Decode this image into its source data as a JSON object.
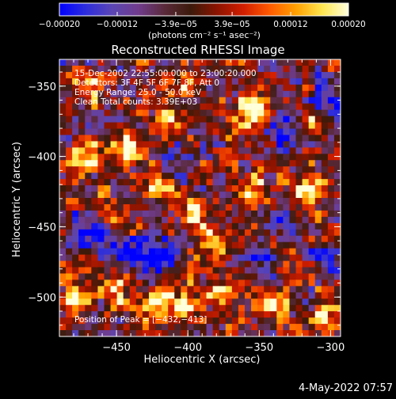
{
  "chart_data": {
    "type": "heatmap",
    "title": "Reconstructed RHESSI Image",
    "xlabel": "Heliocentric X (arcsec)",
    "ylabel": "Heliocentric Y (arcsec)",
    "xlim": [
      -490,
      -293
    ],
    "ylim": [
      -528,
      -331
    ],
    "x_ticks": [
      -450,
      -400,
      -350,
      -300
    ],
    "x_tick_labels": [
      "−450",
      "−400",
      "−350",
      "−300"
    ],
    "y_ticks": [
      -350,
      -400,
      -450,
      -500
    ],
    "y_tick_labels": [
      "−350",
      "−400",
      "−450",
      "−500"
    ],
    "colorbar": {
      "range": [
        -0.0002,
        0.0002
      ],
      "ticks": [
        -0.0002,
        -0.00012,
        -3.9e-05,
        3.9e-05,
        0.00012,
        0.0002
      ],
      "tick_labels": [
        "−0.00020",
        "−0.00012",
        "−3.9e−05",
        "3.9e−05",
        "0.00012",
        "0.00020"
      ],
      "unit_label": "(photons cm⁻² s⁻¹ asec⁻²)",
      "colors": [
        "#0000ff",
        "#2d2ddc",
        "#5a46b4",
        "#703c8c",
        "#5a2a3a",
        "#3c1a0a",
        "#8c1400",
        "#d21e00",
        "#ff5a00",
        "#ffa000",
        "#ffe650",
        "#ffffdc"
      ]
    },
    "annotations": [
      "15-Dec-2002 22:55:00.000 to 23:00:20.000",
      "Detectors: 3F 4F 5F 6F 7F 8F, Att 0",
      "Energy Range: 25.0 - 50.0 keV",
      "Clean    Total counts: 3.39E+03"
    ],
    "peak_label": "Position of Peak = [−432,−413]",
    "peak_position": [
      -432,
      -413
    ],
    "hot_spots": [
      {
        "x": -445,
        "y": -395,
        "level": 1.0
      },
      {
        "x": -355,
        "y": -370,
        "level": 0.95
      },
      {
        "x": -470,
        "y": -400,
        "level": 0.8
      },
      {
        "x": -415,
        "y": -375,
        "level": 0.7
      },
      {
        "x": -400,
        "y": -350,
        "level": 0.65
      },
      {
        "x": -420,
        "y": -420,
        "level": 0.7
      },
      {
        "x": -395,
        "y": -440,
        "level": 0.8
      },
      {
        "x": -385,
        "y": -460,
        "level": 0.75
      },
      {
        "x": -355,
        "y": -425,
        "level": 0.7
      },
      {
        "x": -315,
        "y": -425,
        "level": 0.8
      },
      {
        "x": -420,
        "y": -505,
        "level": 0.85
      },
      {
        "x": -450,
        "y": -495,
        "level": 0.7
      },
      {
        "x": -400,
        "y": -505,
        "level": 0.7
      },
      {
        "x": -375,
        "y": -495,
        "level": 0.6
      },
      {
        "x": -480,
        "y": -500,
        "level": 0.7
      },
      {
        "x": -340,
        "y": -505,
        "level": 0.6
      },
      {
        "x": -305,
        "y": -515,
        "level": 0.65
      },
      {
        "x": -315,
        "y": -375,
        "level": 0.5
      },
      {
        "x": -470,
        "y": -350,
        "level": 0.55
      },
      {
        "x": -455,
        "y": -440,
        "level": 0.45
      }
    ],
    "cold_spots": [
      {
        "x": -470,
        "y": -455,
        "level": 0.8
      },
      {
        "x": -420,
        "y": -470,
        "level": 0.7
      },
      {
        "x": -410,
        "y": -400,
        "level": 0.6
      },
      {
        "x": -335,
        "y": -380,
        "level": 0.6
      },
      {
        "x": -305,
        "y": -360,
        "level": 0.7
      },
      {
        "x": -300,
        "y": -470,
        "level": 0.6
      },
      {
        "x": -350,
        "y": -470,
        "level": 0.55
      },
      {
        "x": -440,
        "y": -470,
        "level": 0.65
      },
      {
        "x": -330,
        "y": -445,
        "level": 0.5
      }
    ]
  },
  "footer_timestamp": "4-May-2022 07:57"
}
